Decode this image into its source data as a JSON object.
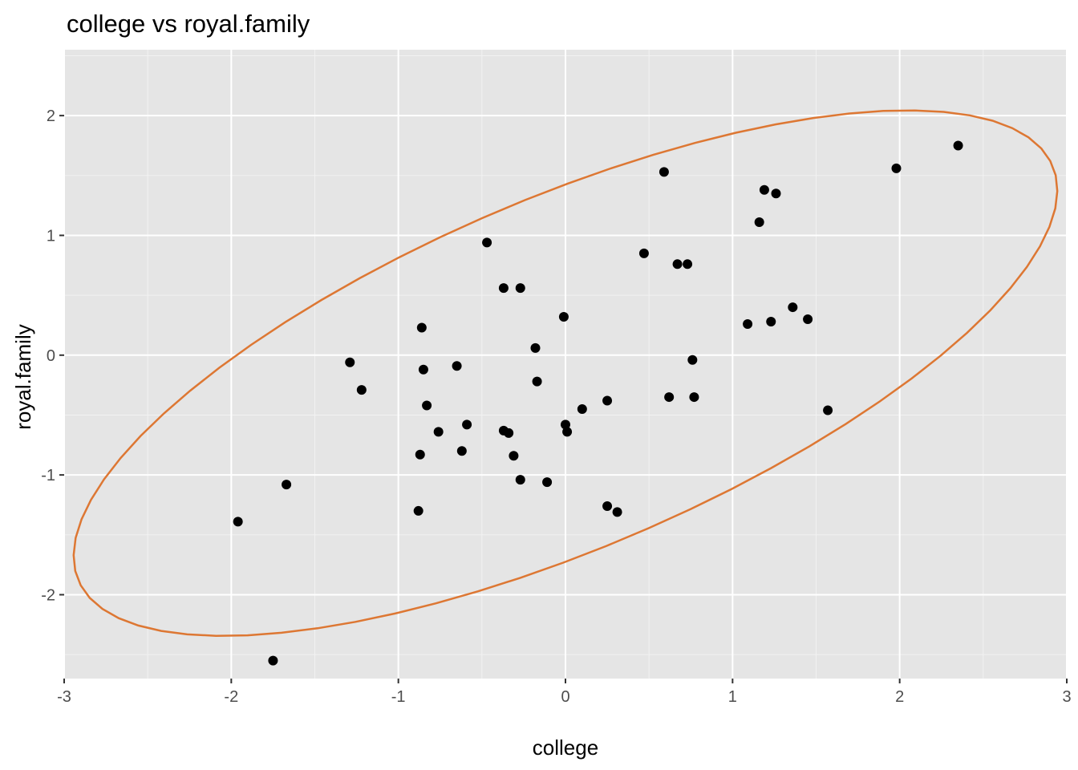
{
  "chart_data": {
    "type": "scatter",
    "title": "college vs royal.family",
    "xlabel": "college",
    "ylabel": "royal.family",
    "xlim": [
      -3,
      3
    ],
    "ylim": [
      -2.7,
      2.55
    ],
    "x_ticks": [
      -3,
      -2,
      -1,
      0,
      1,
      2,
      3
    ],
    "x_tick_labels": [
      "-3",
      "-2",
      "-1",
      "0",
      "1",
      "2",
      "3"
    ],
    "y_ticks": [
      -2,
      -1,
      0,
      1,
      2
    ],
    "y_tick_labels": [
      "-2",
      "-1",
      "0",
      "1",
      "2"
    ],
    "grid": true,
    "point_color": "#000000",
    "ellipse_color": "#DD7733",
    "panel_color": "#E5E5E5",
    "points": [
      {
        "x": -1.96,
        "y": -1.39
      },
      {
        "x": -1.67,
        "y": -1.08
      },
      {
        "x": -1.75,
        "y": -2.55
      },
      {
        "x": -1.29,
        "y": -0.06
      },
      {
        "x": -1.22,
        "y": -0.29
      },
      {
        "x": -0.88,
        "y": -1.3
      },
      {
        "x": -0.87,
        "y": -0.83
      },
      {
        "x": -0.86,
        "y": 0.23
      },
      {
        "x": -0.85,
        "y": -0.12
      },
      {
        "x": -0.83,
        "y": -0.42
      },
      {
        "x": -0.76,
        "y": -0.64
      },
      {
        "x": -0.65,
        "y": -0.09
      },
      {
        "x": -0.62,
        "y": -0.8
      },
      {
        "x": -0.59,
        "y": -0.58
      },
      {
        "x": -0.47,
        "y": 0.94
      },
      {
        "x": -0.37,
        "y": 0.56
      },
      {
        "x": -0.37,
        "y": -0.63
      },
      {
        "x": -0.34,
        "y": -0.65
      },
      {
        "x": -0.31,
        "y": -0.84
      },
      {
        "x": -0.27,
        "y": 0.56
      },
      {
        "x": -0.27,
        "y": -1.04
      },
      {
        "x": -0.18,
        "y": 0.06
      },
      {
        "x": -0.17,
        "y": -0.22
      },
      {
        "x": -0.11,
        "y": -1.06
      },
      {
        "x": -0.01,
        "y": 0.32
      },
      {
        "x": 0.0,
        "y": -0.58
      },
      {
        "x": 0.01,
        "y": -0.64
      },
      {
        "x": 0.1,
        "y": -0.45
      },
      {
        "x": 0.25,
        "y": -1.26
      },
      {
        "x": 0.25,
        "y": -0.38
      },
      {
        "x": 0.31,
        "y": -1.31
      },
      {
        "x": 0.47,
        "y": 0.85
      },
      {
        "x": 0.59,
        "y": 1.53
      },
      {
        "x": 0.62,
        "y": -0.35
      },
      {
        "x": 0.67,
        "y": 0.76
      },
      {
        "x": 0.73,
        "y": 0.76
      },
      {
        "x": 0.76,
        "y": -0.04
      },
      {
        "x": 0.77,
        "y": -0.35
      },
      {
        "x": 1.09,
        "y": 0.26
      },
      {
        "x": 1.16,
        "y": 1.11
      },
      {
        "x": 1.19,
        "y": 1.38
      },
      {
        "x": 1.23,
        "y": 0.28
      },
      {
        "x": 1.26,
        "y": 1.35
      },
      {
        "x": 1.36,
        "y": 0.4
      },
      {
        "x": 1.45,
        "y": 0.3
      },
      {
        "x": 1.57,
        "y": -0.46
      },
      {
        "x": 1.98,
        "y": 1.56
      },
      {
        "x": 2.35,
        "y": 1.75
      }
    ],
    "ellipse": {
      "cx": 0.0,
      "cy": -0.15,
      "semi_major": 3.41,
      "semi_minor": 1.36,
      "angle_deg": 33.4
    }
  }
}
